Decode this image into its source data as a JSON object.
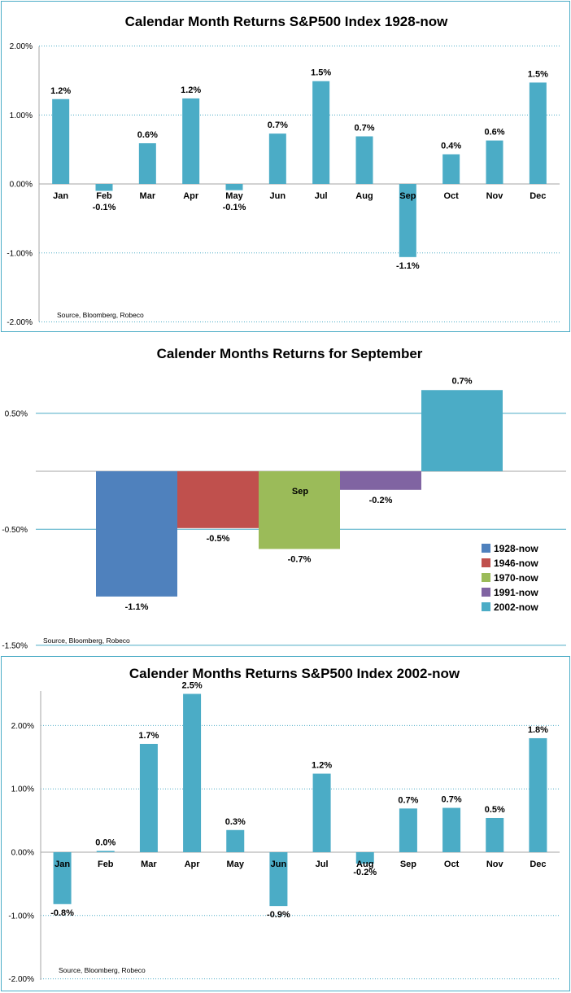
{
  "colors": {
    "bar": "#4bacc6",
    "grid": "#4bacc6",
    "axis": "#a6a6a6",
    "border": "#4bacc6"
  },
  "chart_data": [
    {
      "type": "bar",
      "title": "Calendar Month Returns S&P500 Index 1928-now",
      "source": "Source, Bloomberg, Robeco",
      "categories": [
        "Jan",
        "Feb",
        "Mar",
        "Apr",
        "May",
        "Jun",
        "Jul",
        "Aug",
        "Sep",
        "Oct",
        "Nov",
        "Dec"
      ],
      "values": [
        1.23,
        -0.1,
        0.59,
        1.24,
        -0.09,
        0.73,
        1.49,
        0.69,
        -1.06,
        0.43,
        0.63,
        1.47
      ],
      "data_labels": [
        "1.2%",
        "-0.1%",
        "0.6%",
        "1.2%",
        "-0.1%",
        "0.7%",
        "1.5%",
        "0.7%",
        "-1.1%",
        "0.4%",
        "0.6%",
        "1.5%"
      ],
      "yticks": [
        "2.00%",
        "1.00%",
        "0.00%",
        "-1.00%",
        "-2.00%"
      ],
      "ylim": [
        -2,
        2
      ],
      "grid": true
    },
    {
      "type": "bar",
      "title": "Calender Months Returns for September",
      "source": "Source, Bloomberg, Robeco",
      "categories": [
        "1928-now",
        "1946-now",
        "1970-now",
        "1991-now",
        "2002-now"
      ],
      "values": [
        -1.08,
        -0.49,
        -0.67,
        -0.16,
        0.7
      ],
      "data_labels": [
        "-1.1%",
        "-0.5%",
        "-0.7%",
        "-0.2%",
        "0.7%"
      ],
      "series_colors": [
        "#4f81bd",
        "#c0504d",
        "#9bbb59",
        "#8064a2",
        "#4bacc6"
      ],
      "bar_annotation": "Sep",
      "yticks": [
        "0.50%",
        "-0.50%",
        "-1.50%"
      ],
      "ylim": [
        -1.5,
        0.95
      ],
      "legend": {
        "position": "bottom-right",
        "entries": [
          "1928-now",
          "1946-now",
          "1970-now",
          "1991-now",
          "2002-now"
        ]
      },
      "grid": true
    },
    {
      "type": "bar",
      "title": "Calender Months Returns S&P500 Index 2002-now",
      "source": "Source, Bloomberg, Robeco",
      "categories": [
        "Jan",
        "Feb",
        "Mar",
        "Apr",
        "May",
        "Jun",
        "Jul",
        "Aug",
        "Sep",
        "Oct",
        "Nov",
        "Dec"
      ],
      "values": [
        -0.82,
        0.02,
        1.71,
        2.5,
        0.35,
        -0.85,
        1.24,
        -0.18,
        0.69,
        0.7,
        0.54,
        1.8
      ],
      "data_labels": [
        "-0.8%",
        "0.0%",
        "1.7%",
        "2.5%",
        "0.3%",
        "-0.9%",
        "1.2%",
        "-0.2%",
        "0.7%",
        "0.7%",
        "0.5%",
        "1.8%"
      ],
      "yticks": [
        "2.00%",
        "1.00%",
        "0.00%",
        "-1.00%",
        "-2.00%"
      ],
      "ylim": [
        -2,
        2.5
      ],
      "grid": true
    }
  ]
}
